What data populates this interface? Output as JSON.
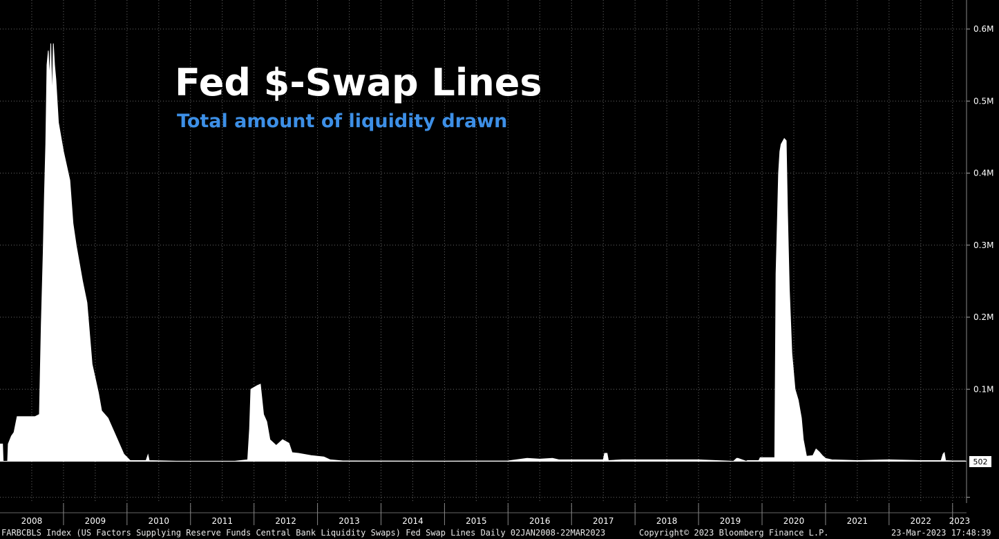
{
  "colors": {
    "background": "#000000",
    "bars": "#ffffff",
    "grid": "#5a5a5a",
    "subtitle": "#3d8fe6",
    "text": "#ffffff"
  },
  "footer": {
    "source": "FARBCBLS Index (US Factors Supplying Reserve Funds Central Bank Liquidity Swaps) Fed Swap Lines  Daily 02JAN2008-22MAR2023",
    "copyright": "Copyright© 2023 Bloomberg Finance L.P.",
    "timestamp": "23-Mar-2023 17:48:39"
  },
  "chart_data": {
    "type": "area",
    "title": "Fed $-Swap Lines",
    "subtitle": "Total amount of liquidity drawn",
    "xlabel": "",
    "ylabel": "",
    "x_range": [
      2008.0,
      2023.22
    ],
    "ylim": [
      -0.05,
      0.62
    ],
    "y_ticks": [
      {
        "value": 0.1,
        "label": "0.1M"
      },
      {
        "value": 0.2,
        "label": "0.2M"
      },
      {
        "value": 0.3,
        "label": "0.3M"
      },
      {
        "value": 0.4,
        "label": "0.4M"
      },
      {
        "value": 0.5,
        "label": "0.5M"
      },
      {
        "value": 0.6,
        "label": "0.6M"
      }
    ],
    "x_ticks": [
      "2008",
      "2009",
      "2010",
      "2011",
      "2012",
      "2013",
      "2014",
      "2015",
      "2016",
      "2017",
      "2018",
      "2019",
      "2020",
      "2021",
      "2022",
      "2023"
    ],
    "last_value_label": "502",
    "last_value": 0.000502,
    "grid": true,
    "series": [
      {
        "values": [
          [
            2008.0,
            0.024
          ],
          [
            2008.04,
            0.024
          ],
          [
            2008.05,
            0.0
          ],
          [
            2008.12,
            0.0
          ],
          [
            2008.13,
            0.024
          ],
          [
            2008.18,
            0.035
          ],
          [
            2008.22,
            0.04
          ],
          [
            2008.27,
            0.062
          ],
          [
            2008.55,
            0.062
          ],
          [
            2008.62,
            0.065
          ],
          [
            2008.65,
            0.19
          ],
          [
            2008.68,
            0.29
          ],
          [
            2008.7,
            0.37
          ],
          [
            2008.72,
            0.44
          ],
          [
            2008.74,
            0.55
          ],
          [
            2008.76,
            0.57
          ],
          [
            2008.78,
            0.53
          ],
          [
            2008.8,
            0.58
          ],
          [
            2008.82,
            0.5
          ],
          [
            2008.84,
            0.58
          ],
          [
            2008.86,
            0.55
          ],
          [
            2008.88,
            0.53
          ],
          [
            2008.92,
            0.47
          ],
          [
            2009.0,
            0.43
          ],
          [
            2009.1,
            0.39
          ],
          [
            2009.15,
            0.33
          ],
          [
            2009.2,
            0.3
          ],
          [
            2009.3,
            0.25
          ],
          [
            2009.37,
            0.22
          ],
          [
            2009.45,
            0.135
          ],
          [
            2009.5,
            0.115
          ],
          [
            2009.55,
            0.095
          ],
          [
            2009.6,
            0.07
          ],
          [
            2009.7,
            0.06
          ],
          [
            2009.8,
            0.04
          ],
          [
            2009.9,
            0.02
          ],
          [
            2009.95,
            0.01
          ],
          [
            2010.05,
            0.001
          ],
          [
            2010.3,
            0.001
          ],
          [
            2010.33,
            0.009
          ],
          [
            2010.35,
            0.001
          ],
          [
            2010.8,
            0.0001
          ],
          [
            2011.7,
            0.0001
          ],
          [
            2011.9,
            0.002
          ],
          [
            2011.93,
            0.045
          ],
          [
            2011.95,
            0.1
          ],
          [
            2012.05,
            0.105
          ],
          [
            2012.1,
            0.107
          ],
          [
            2012.15,
            0.065
          ],
          [
            2012.2,
            0.055
          ],
          [
            2012.25,
            0.03
          ],
          [
            2012.35,
            0.022
          ],
          [
            2012.45,
            0.03
          ],
          [
            2012.55,
            0.025
          ],
          [
            2012.6,
            0.012
          ],
          [
            2012.7,
            0.011
          ],
          [
            2012.9,
            0.008
          ],
          [
            2013.0,
            0.007
          ],
          [
            2013.1,
            0.006
          ],
          [
            2013.2,
            0.002
          ],
          [
            2013.4,
            0.0005
          ],
          [
            2015.0,
            0.0003
          ],
          [
            2016.0,
            0.0005
          ],
          [
            2016.3,
            0.004
          ],
          [
            2016.5,
            0.003
          ],
          [
            2016.7,
            0.004
          ],
          [
            2016.8,
            0.002
          ],
          [
            2017.5,
            0.002
          ],
          [
            2017.52,
            0.011
          ],
          [
            2017.56,
            0.011
          ],
          [
            2017.58,
            0.001
          ],
          [
            2017.8,
            0.002
          ],
          [
            2018.5,
            0.002
          ],
          [
            2019.0,
            0.002
          ],
          [
            2019.55,
            0.0
          ],
          [
            2019.6,
            0.004
          ],
          [
            2019.62,
            0.004
          ],
          [
            2019.75,
            0.0
          ],
          [
            2019.77,
            0.001
          ],
          [
            2019.95,
            0.001
          ],
          [
            2019.97,
            0.005
          ],
          [
            2019.99,
            0.005
          ],
          [
            2020.2,
            0.005
          ],
          [
            2020.22,
            0.26
          ],
          [
            2020.24,
            0.33
          ],
          [
            2020.26,
            0.4
          ],
          [
            2020.28,
            0.43
          ],
          [
            2020.3,
            0.44
          ],
          [
            2020.35,
            0.448
          ],
          [
            2020.38,
            0.445
          ],
          [
            2020.4,
            0.35
          ],
          [
            2020.43,
            0.24
          ],
          [
            2020.47,
            0.15
          ],
          [
            2020.52,
            0.1
          ],
          [
            2020.57,
            0.085
          ],
          [
            2020.62,
            0.06
          ],
          [
            2020.65,
            0.03
          ],
          [
            2020.7,
            0.007
          ],
          [
            2020.8,
            0.008
          ],
          [
            2020.85,
            0.017
          ],
          [
            2020.9,
            0.013
          ],
          [
            2020.95,
            0.008
          ],
          [
            2021.0,
            0.004
          ],
          [
            2021.1,
            0.002
          ],
          [
            2021.5,
            0.001
          ],
          [
            2022.0,
            0.002
          ],
          [
            2022.5,
            0.001
          ],
          [
            2022.82,
            0.001
          ],
          [
            2022.85,
            0.01
          ],
          [
            2022.87,
            0.012
          ],
          [
            2022.89,
            0.001
          ],
          [
            2023.0,
            0.0005
          ],
          [
            2023.2,
            0.0005
          ]
        ]
      }
    ]
  }
}
